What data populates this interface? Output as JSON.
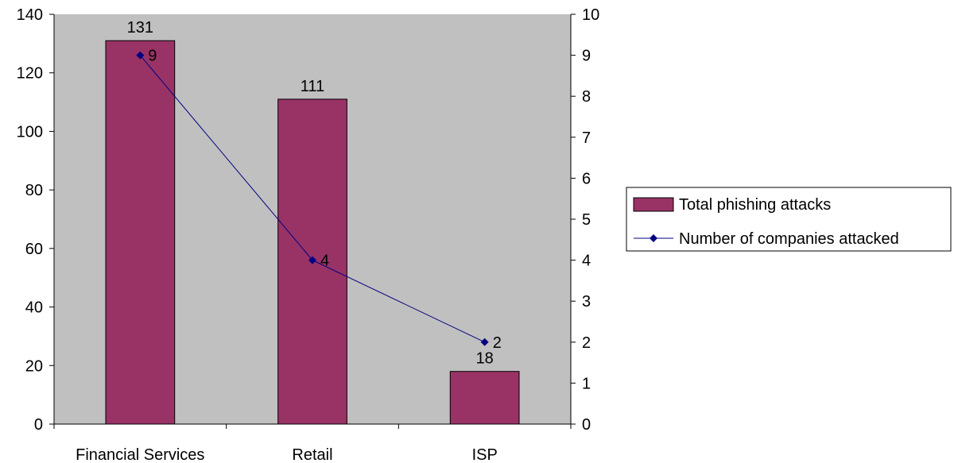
{
  "chart_data": {
    "type": "bar",
    "categories": [
      "Financial Services",
      "Retail",
      "ISP"
    ],
    "series": [
      {
        "name": "Total phishing attacks",
        "type": "bar",
        "axis": "left",
        "values": [
          131,
          111,
          18
        ],
        "color": "#993366"
      },
      {
        "name": "Number of companies attacked",
        "type": "line",
        "axis": "right",
        "values": [
          9,
          4,
          2
        ],
        "color": "#000080"
      }
    ],
    "y_left": {
      "range": [
        0,
        140
      ],
      "ticks": [
        "0",
        "20",
        "40",
        "60",
        "80",
        "100",
        "120",
        "140"
      ]
    },
    "y_right": {
      "range": [
        0,
        10
      ],
      "ticks": [
        "0",
        "1",
        "2",
        "3",
        "4",
        "5",
        "6",
        "7",
        "8",
        "9",
        "10"
      ]
    },
    "plot_background": "#C0C0C0",
    "grid": false,
    "legend_position": "right"
  }
}
